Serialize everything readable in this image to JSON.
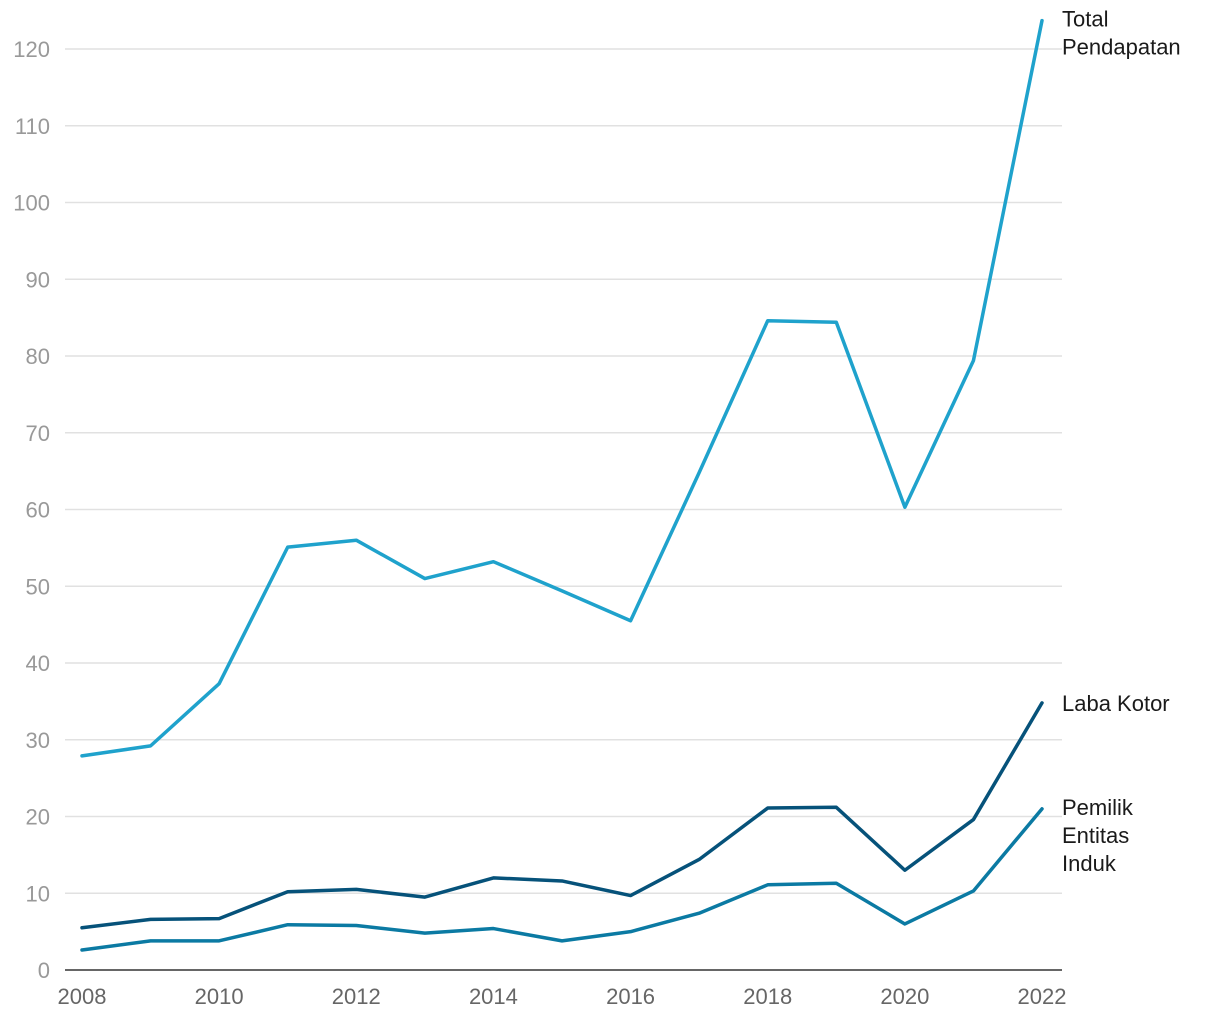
{
  "chart_data": {
    "type": "line",
    "title": "",
    "xlabel": "",
    "ylabel": "",
    "x": [
      2008,
      2009,
      2010,
      2011,
      2012,
      2013,
      2014,
      2015,
      2016,
      2017,
      2018,
      2019,
      2020,
      2021,
      2022
    ],
    "xticks": [
      "2008",
      "2010",
      "2012",
      "2014",
      "2016",
      "2018",
      "2020",
      "2022"
    ],
    "yticks": [
      "0",
      "10",
      "20",
      "30",
      "40",
      "50",
      "60",
      "70",
      "80",
      "90",
      "100",
      "110",
      "120"
    ],
    "ylim": [
      0,
      120
    ],
    "grid": true,
    "series": [
      {
        "name": "Total Pendapatan",
        "label_lines": [
          "Total",
          "Pendapatan"
        ],
        "color": "#1fa2cc",
        "values": [
          27.9,
          29.2,
          37.3,
          55.1,
          56.0,
          51.0,
          53.2,
          49.4,
          45.5,
          64.8,
          84.6,
          84.4,
          60.3,
          79.4,
          123.7
        ]
      },
      {
        "name": "Laba Kotor",
        "label_lines": [
          "Laba Kotor"
        ],
        "color": "#06527a",
        "values": [
          5.5,
          6.6,
          6.7,
          10.2,
          10.5,
          9.5,
          12.0,
          11.6,
          9.7,
          14.4,
          21.1,
          21.2,
          13.0,
          19.6,
          34.8
        ]
      },
      {
        "name": "Pemilik Entitas Induk",
        "label_lines": [
          "Pemilik",
          "Entitas",
          "Induk"
        ],
        "color": "#0b7aa3",
        "values": [
          2.6,
          3.8,
          3.8,
          5.9,
          5.8,
          4.8,
          5.4,
          3.8,
          5.0,
          7.4,
          11.1,
          11.3,
          6.0,
          10.3,
          21.0
        ]
      }
    ]
  }
}
